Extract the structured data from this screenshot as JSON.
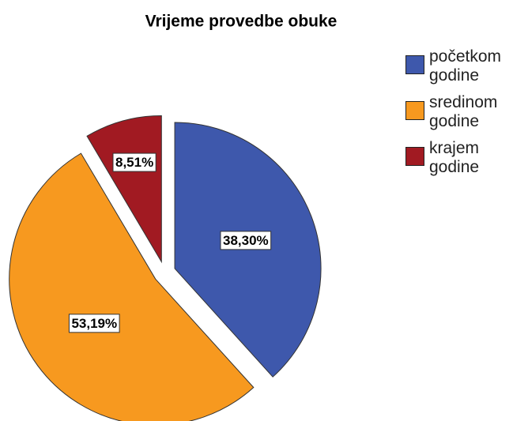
{
  "chart_data": {
    "type": "pie",
    "title": "Vrijeme provedbe obuke",
    "categories": [
      "početkom godine",
      "sredinom godine",
      "krajem godine"
    ],
    "values": [
      38.3,
      53.19,
      8.51
    ],
    "value_labels": [
      "38,30%",
      "53,19%",
      "8,51%"
    ],
    "colors": [
      "#3e58ac",
      "#f7991f",
      "#a11a22"
    ],
    "legend": "right"
  }
}
